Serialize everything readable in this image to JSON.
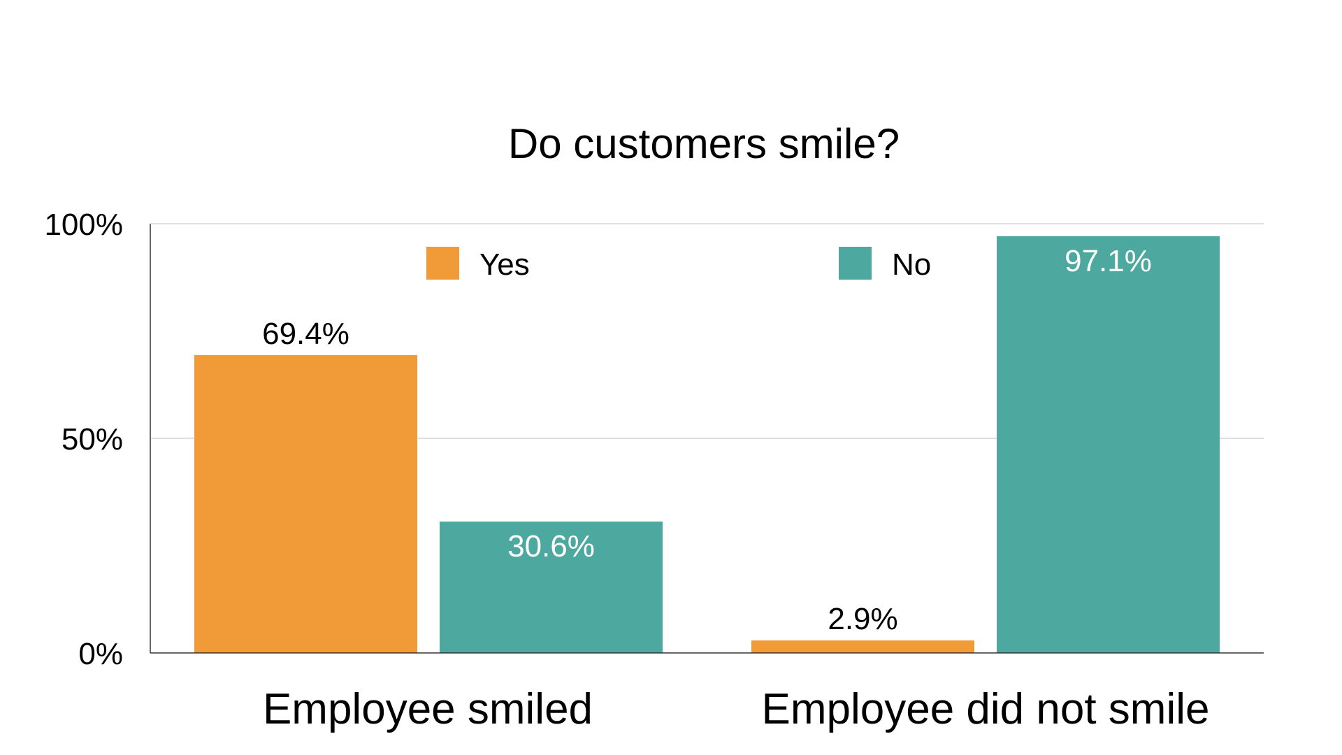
{
  "chart_data": {
    "type": "bar",
    "title": "Do customers smile?",
    "categories": [
      "Employee smiled",
      "Employee did not smile"
    ],
    "series": [
      {
        "name": "Yes",
        "values": [
          69.4,
          2.9
        ],
        "labels": [
          "69.4%",
          "2.9%"
        ],
        "color": "#F09B38",
        "label_color": "#000000"
      },
      {
        "name": "No",
        "values": [
          30.6,
          97.1
        ],
        "labels": [
          "30.6%",
          "97.1%"
        ],
        "color": "#4DA89F",
        "label_color": "#FFFFFF"
      }
    ],
    "y_ticks": [
      {
        "value": 0,
        "label": "0%"
      },
      {
        "value": 50,
        "label": "50%"
      },
      {
        "value": 100,
        "label": "100%"
      }
    ],
    "ylim": [
      0,
      100
    ],
    "xlabel": "",
    "ylabel": "",
    "grid": true,
    "legend": {
      "position": "top-center",
      "entries": [
        "Yes",
        "No"
      ]
    }
  }
}
